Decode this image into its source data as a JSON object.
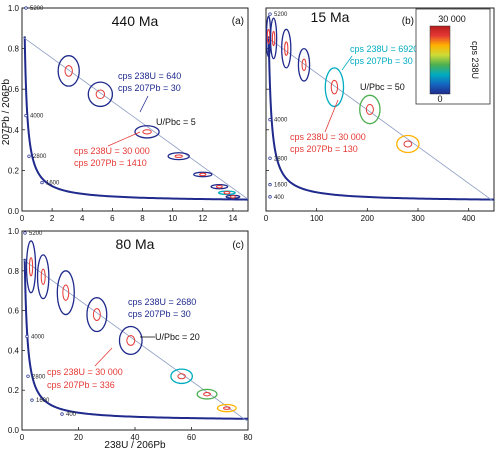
{
  "figure": {
    "ylabel": "207Pb / 206Pb",
    "xlabel": "238U / 206Pb"
  },
  "colorbar": {
    "title": "cps 238U",
    "max_label": "30 000",
    "min_label": "0",
    "colors": [
      "#1f2a8c",
      "#1565c0",
      "#00acc1",
      "#4caf50",
      "#cddc39",
      "#ffb300",
      "#e53935",
      "#b71c1c"
    ]
  },
  "chart_data": [
    {
      "type": "scatter",
      "id": "a",
      "title": "440 Ma",
      "panel_label": "(a)",
      "xlim": [
        0,
        15
      ],
      "ylim": [
        0,
        1.0
      ],
      "xticks": [
        0,
        2,
        4,
        6,
        8,
        10,
        12,
        14
      ],
      "yticks": [
        0,
        0.2,
        0.4,
        0.6,
        0.8,
        1.0
      ],
      "mixing_line": {
        "x": [
          0,
          15
        ],
        "y": [
          0.86,
          0.058
        ],
        "label": "U/Pbc = 5"
      },
      "concordia_age_labels": [
        "5200",
        "4000",
        "2800",
        "1600"
      ],
      "ellipses": [
        {
          "x": 3.1,
          "y": 0.69,
          "rx": 0.7,
          "ry": 0.075,
          "color": "#1f2a8c"
        },
        {
          "x": 5.2,
          "y": 0.575,
          "rx": 0.8,
          "ry": 0.06,
          "color": "#1f2a8c"
        },
        {
          "x": 8.3,
          "y": 0.39,
          "rx": 0.8,
          "ry": 0.03,
          "color": "#1f2a8c"
        },
        {
          "x": 10.4,
          "y": 0.27,
          "rx": 0.7,
          "ry": 0.017,
          "color": "#1f2a8c"
        },
        {
          "x": 12.0,
          "y": 0.18,
          "rx": 0.6,
          "ry": 0.011,
          "color": "#1f2a8c"
        },
        {
          "x": 13.1,
          "y": 0.12,
          "rx": 0.55,
          "ry": 0.01,
          "color": "#1f2a8c"
        },
        {
          "x": 13.6,
          "y": 0.09,
          "rx": 0.55,
          "ry": 0.008,
          "color": "#00acc1"
        },
        {
          "x": 14.0,
          "y": 0.07,
          "rx": 0.45,
          "ry": 0.007,
          "color": "#1f2a8c"
        }
      ],
      "annotations": [
        {
          "text": "cps 238U = 640",
          "color": "#1f2a8c"
        },
        {
          "text": "cps 207Pb = 30",
          "color": "#1f2a8c"
        },
        {
          "text": "cps 238U = 30 000",
          "color": "#e53935"
        },
        {
          "text": "cps 207Pb = 1410",
          "color": "#e53935"
        }
      ]
    },
    {
      "type": "scatter",
      "id": "b",
      "title": "15 Ma",
      "panel_label": "(b)",
      "xlim": [
        0,
        450
      ],
      "ylim": [
        0,
        1.0
      ],
      "xticks": [
        0,
        100,
        200,
        300,
        400
      ],
      "yticks": [
        0,
        0.2,
        0.4,
        0.6,
        0.8,
        1.0
      ],
      "mixing_line": {
        "x": [
          0,
          450
        ],
        "y": [
          0.86,
          0.046
        ],
        "label": "U/Pbc = 50"
      },
      "concordia_age_labels": [
        "5200",
        "4000",
        "2800",
        "1600",
        "400"
      ],
      "ellipses": [
        {
          "x": 5,
          "y": 0.86,
          "rx": 4,
          "ry": 0.1,
          "color": "#1f2a8c"
        },
        {
          "x": 15,
          "y": 0.85,
          "rx": 6,
          "ry": 0.1,
          "color": "#1f2a8c"
        },
        {
          "x": 40,
          "y": 0.8,
          "rx": 9,
          "ry": 0.095,
          "color": "#1f2a8c"
        },
        {
          "x": 75,
          "y": 0.72,
          "rx": 11,
          "ry": 0.08,
          "color": "#1f2a8c"
        },
        {
          "x": 135,
          "y": 0.61,
          "rx": 18,
          "ry": 0.095,
          "color": "#00acc1"
        },
        {
          "x": 205,
          "y": 0.5,
          "rx": 20,
          "ry": 0.07,
          "color": "#4caf50"
        },
        {
          "x": 280,
          "y": 0.33,
          "rx": 22,
          "ry": 0.042,
          "color": "#ffb300"
        }
      ],
      "annotations": [
        {
          "text": "cps 238U = 6920",
          "color": "#00acc1"
        },
        {
          "text": "cps 207Pb = 30",
          "color": "#00acc1"
        },
        {
          "text": "cps 238U = 30 000",
          "color": "#e53935"
        },
        {
          "text": "cps 207Pb = 130",
          "color": "#e53935"
        }
      ]
    },
    {
      "type": "scatter",
      "id": "c",
      "title": "80 Ma",
      "panel_label": "(c)",
      "xlim": [
        0,
        80
      ],
      "ylim": [
        0,
        1.0
      ],
      "xticks": [
        0,
        20,
        40,
        60,
        80
      ],
      "yticks": [
        0,
        0.2,
        0.4,
        0.6,
        0.8,
        1.0
      ],
      "mixing_line": {
        "x": [
          0,
          80
        ],
        "y": [
          0.86,
          0.042
        ],
        "label": "U/Pbc = 20"
      },
      "concordia_age_labels": [
        "5200",
        "4000",
        "2800",
        "1600",
        "400"
      ],
      "ellipses": [
        {
          "x": 3.2,
          "y": 0.82,
          "rx": 1.6,
          "ry": 0.13,
          "color": "#1f2a8c"
        },
        {
          "x": 7.5,
          "y": 0.77,
          "rx": 2.0,
          "ry": 0.11,
          "color": "#1f2a8c"
        },
        {
          "x": 15.5,
          "y": 0.69,
          "rx": 3.0,
          "ry": 0.11,
          "color": "#1f2a8c"
        },
        {
          "x": 26.5,
          "y": 0.58,
          "rx": 3.5,
          "ry": 0.085,
          "color": "#1f2a8c"
        },
        {
          "x": 38.5,
          "y": 0.45,
          "rx": 4.0,
          "ry": 0.07,
          "color": "#1f2a8c"
        },
        {
          "x": 56.5,
          "y": 0.27,
          "rx": 3.8,
          "ry": 0.036,
          "color": "#00acc1"
        },
        {
          "x": 65.5,
          "y": 0.18,
          "rx": 3.5,
          "ry": 0.024,
          "color": "#4caf50"
        },
        {
          "x": 72.5,
          "y": 0.11,
          "rx": 3.3,
          "ry": 0.018,
          "color": "#ffb300"
        }
      ],
      "annotations": [
        {
          "text": "cps 238U = 2680",
          "color": "#1f2a8c"
        },
        {
          "text": "cps 207Pb = 30",
          "color": "#1f2a8c"
        },
        {
          "text": "cps 238U = 30 000",
          "color": "#e53935"
        },
        {
          "text": "cps 207Pb = 336",
          "color": "#e53935"
        }
      ]
    }
  ]
}
